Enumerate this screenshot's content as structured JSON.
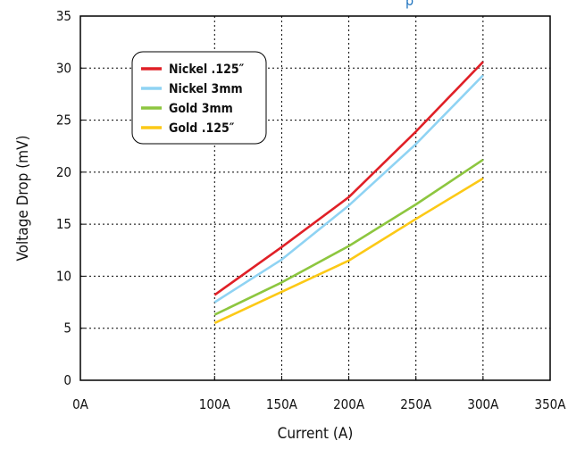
{
  "chart_data": {
    "type": "line",
    "title_fragment": "p",
    "xlabel": "Current (A)",
    "ylabel": "Voltage Drop (mV)",
    "x_ticks": [
      "0A",
      "100A",
      "150A",
      "200A",
      "250A",
      "300A",
      "350A"
    ],
    "x_tick_values": [
      0,
      100,
      150,
      200,
      250,
      300,
      350
    ],
    "y_ticks": [
      "0",
      "5",
      "10",
      "15",
      "20",
      "25",
      "30",
      "35"
    ],
    "y_tick_values": [
      0,
      5,
      10,
      15,
      20,
      25,
      30,
      35
    ],
    "x": [
      100,
      150,
      200,
      250,
      300
    ],
    "xlim": [
      0,
      350
    ],
    "ylim": [
      0,
      35
    ],
    "grid": true,
    "grid_style": "dotted",
    "legend_position": "top-left",
    "series": [
      {
        "name": "Nickel .125″",
        "color": "#e02027",
        "values": [
          8.2,
          12.8,
          17.6,
          23.9,
          30.6
        ]
      },
      {
        "name": "Nickel 3mm",
        "color": "#8fd3f3",
        "values": [
          7.5,
          11.6,
          16.8,
          22.7,
          29.3
        ]
      },
      {
        "name": "Gold 3mm",
        "color": "#8dc63f",
        "values": [
          6.3,
          9.4,
          12.9,
          16.9,
          21.2
        ]
      },
      {
        "name": "Gold .125″",
        "color": "#fcc916",
        "values": [
          5.5,
          8.5,
          11.5,
          15.5,
          19.4
        ]
      }
    ]
  }
}
